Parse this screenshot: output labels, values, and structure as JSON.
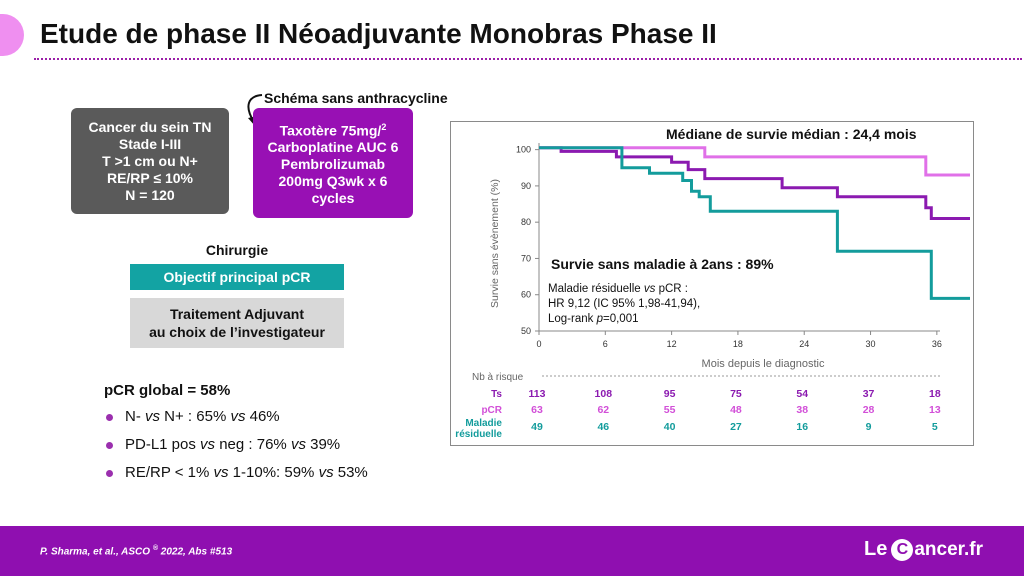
{
  "slide": {
    "title": "Etude de phase II Néoadjuvante Monobras Phase II"
  },
  "design": {
    "population_box": "Cancer du sein TN\nStade I-III\nT >1 cm ou N+\nRE/RP ≤ 10%\nN = 120",
    "schema_label": "Schéma sans anthracycline",
    "treatment_line1": "Taxotère 75mg/",
    "treatment_sup": "2",
    "treatment_rest": "\nCarboplatine AUC 6\nPembrolizumab\n200mg Q3wk x 6\ncycles",
    "surgery_label": "Chirurgie",
    "objective_label": "Objectif principal pCR",
    "adjuvant_label": "Traitement Adjuvant\nau choix de l’investigateur"
  },
  "results": {
    "pcr_title": "pCR global = 58%",
    "bullets": [
      {
        "a": "N- ",
        "b": "vs",
        "c": " N+ : 65% ",
        "d": "vs",
        "e": " 46%"
      },
      {
        "a": "PD-L1 pos ",
        "b": "vs",
        "c": " neg : 76% ",
        "d": "vs",
        "e": " 39%"
      },
      {
        "a": "RE/RP < 1% ",
        "b": "vs",
        "c": " 1-10%: 59% ",
        "d": "vs",
        "e": " 53%"
      }
    ]
  },
  "chart_data": {
    "type": "line",
    "title": "Médiane de survie médian : 24,4 mois",
    "subtitle": "Survie sans maladie à 2ans : 89%",
    "xlabel": "Mois depuis le diagnostic",
    "ylabel": "Survie sans évènement (%)",
    "xlim": [
      0,
      39
    ],
    "ylim": [
      50,
      101
    ],
    "xticks": [
      0,
      6,
      12,
      18,
      24,
      30,
      36
    ],
    "yticks": [
      50,
      60,
      70,
      80,
      90,
      100
    ],
    "annotation": {
      "line1": "Maladie résiduelle ",
      "line1_vs": "vs",
      "line1_end": " pCR :",
      "line2": "HR 9,12 (IC 95% 1,98-41,94),",
      "line3_a": "Log-rank ",
      "line3_p": "p",
      "line3_b": "=0,001"
    },
    "series": [
      {
        "name": "Ts",
        "color": "#8b1ab0",
        "x": [
          0,
          2,
          2,
          7,
          7,
          12,
          12,
          13.5,
          13.5,
          15,
          15,
          22,
          22,
          27,
          27,
          35,
          35,
          35.5,
          35.5,
          39
        ],
        "y": [
          100.5,
          100.5,
          99.5,
          99.5,
          98,
          98,
          96.5,
          96.5,
          94.5,
          94.5,
          92,
          92,
          89.5,
          89.5,
          87,
          87,
          84,
          84,
          81,
          81
        ]
      },
      {
        "name": "pCR",
        "color": "#e070e8",
        "x": [
          0,
          15,
          15,
          35,
          35,
          39
        ],
        "y": [
          100.5,
          100.5,
          98,
          98,
          93,
          93
        ]
      },
      {
        "name": "Maladie résiduelle",
        "color": "#139c9c",
        "x": [
          0,
          7.5,
          7.5,
          10,
          10,
          13,
          13,
          13.8,
          13.8,
          14.5,
          14.5,
          15.5,
          15.5,
          27,
          27,
          35.5,
          35.5,
          39
        ],
        "y": [
          100.5,
          100.5,
          95,
          95,
          93.5,
          93.5,
          91.5,
          91.5,
          88.5,
          88.5,
          87,
          87,
          83,
          83,
          72,
          72,
          59,
          59
        ]
      }
    ],
    "risk_table": {
      "header": "Nb à risque",
      "times": [
        0,
        6,
        12,
        18,
        24,
        30,
        36
      ],
      "rows": [
        {
          "label": "Ts",
          "values": [
            113,
            108,
            95,
            75,
            54,
            37,
            18
          ],
          "color": "#8b1ab0"
        },
        {
          "label": "pCR",
          "values": [
            63,
            62,
            55,
            48,
            38,
            28,
            13
          ],
          "color": "#d24fd8"
        },
        {
          "label": "Maladie\nrésiduelle",
          "values": [
            49,
            46,
            40,
            27,
            16,
            9,
            5
          ],
          "color": "#139c9c"
        }
      ]
    }
  },
  "footer": {
    "reference_main": "P. Sharma, et al.,  ASCO ",
    "reference_reg": "®",
    "reference_end": " 2022, Abs #513",
    "logo_le": "Le",
    "logo_c": "C",
    "logo_rest": "ancer.fr"
  },
  "colors": {
    "footer_purple": "#8f0fb0",
    "accent_teal": "#13a3a3",
    "treatment_purple": "#9810b4"
  }
}
